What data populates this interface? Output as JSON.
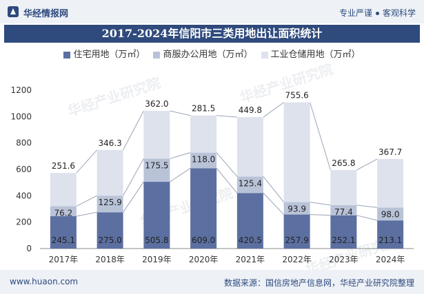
{
  "header": {
    "brand": "华经情报网",
    "tagline_left": "专业严谨",
    "tagline_right": "客观科学"
  },
  "watermark": "华经产业研究院",
  "chart_data": {
    "type": "bar",
    "stacked": true,
    "title": "2017-2024年信阳市三类用地出让面积统计",
    "xlabel": "",
    "ylabel": "",
    "ylim": [
      0,
      1200
    ],
    "yticks": [
      0,
      200,
      400,
      600,
      800,
      1000,
      1200
    ],
    "categories": [
      "2017年",
      "2018年",
      "2019年",
      "2020年",
      "2021年",
      "2022年",
      "2023年",
      "2024年"
    ],
    "legend_position": "top",
    "grid": false,
    "series": [
      {
        "name": "住宅用地（万㎡）",
        "color": "#5b6fa0",
        "values": [
          245.1,
          275.0,
          505.8,
          609.0,
          420.5,
          257.9,
          252.1,
          213.1
        ]
      },
      {
        "name": "商服办公用地（万㎡）",
        "color": "#b9c3d8",
        "values": [
          76.2,
          125.9,
          175.5,
          118.0,
          125.4,
          93.9,
          77.4,
          98.0
        ]
      },
      {
        "name": "工业仓储用地（万㎡）",
        "color": "#dde2ed",
        "values": [
          251.6,
          346.3,
          362.0,
          281.5,
          449.8,
          755.6,
          265.8,
          367.7
        ]
      }
    ]
  },
  "footer": {
    "website": "www.huaon.com",
    "source": "数据来源：国信房地产信息网，华经产业研究院整理"
  }
}
